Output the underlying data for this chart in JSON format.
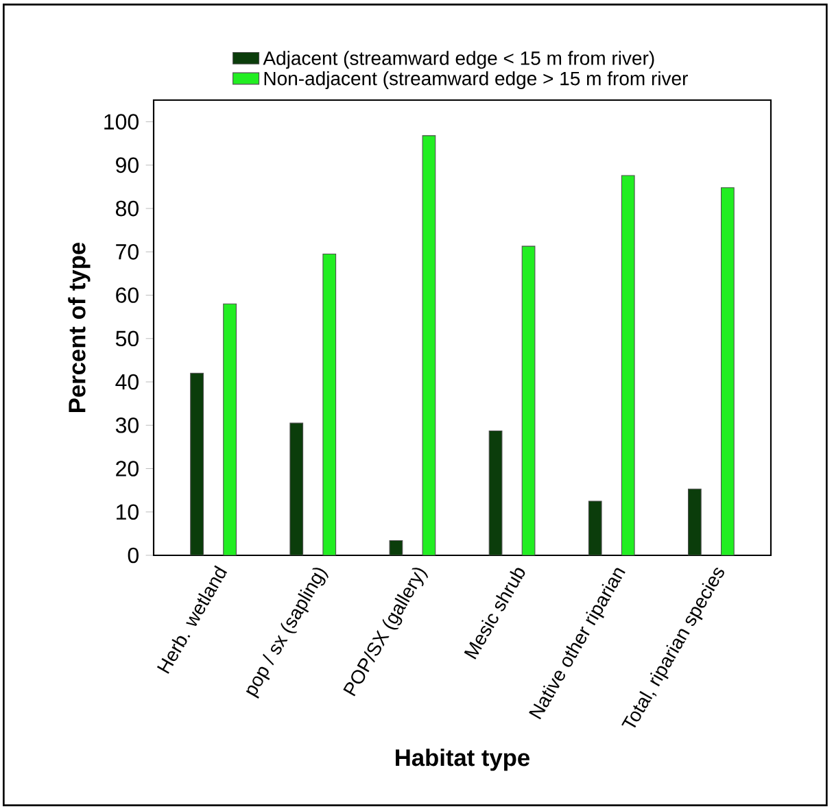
{
  "chart_data": {
    "type": "bar",
    "xlabel": "Habitat type",
    "ylabel": "Percent of type",
    "categories": [
      "Herb. wetland",
      "pop / sx (sapling)",
      "POP/SX (gallery)",
      "Mesic shrub",
      "Native other riparian",
      "Total, riparian species"
    ],
    "series": [
      {
        "name": "Adjacent (streamward edge < 15 m from river)",
        "color": "#0b3d0b",
        "values": [
          42,
          30.5,
          3.4,
          28.7,
          12.5,
          15.3
        ]
      },
      {
        "name": "Non-adjacent (streamward edge > 15 m from river",
        "color": "#22ee22",
        "values": [
          58,
          69.5,
          96.8,
          71.3,
          87.6,
          84.8
        ]
      }
    ],
    "ylim": [
      0,
      105
    ],
    "yticks": [
      0,
      10,
      20,
      30,
      40,
      50,
      60,
      70,
      80,
      90,
      100
    ],
    "grid": false,
    "legend": "top"
  }
}
